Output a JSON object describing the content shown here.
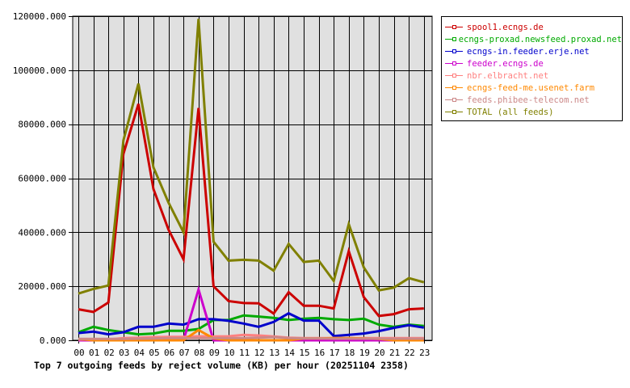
{
  "chart_data": {
    "type": "line",
    "title": "Top 7 outgoing feeds by reject volume (KB) per hour (20251104 2358)",
    "xlabel": "",
    "ylabel": "",
    "ylim": [
      0,
      120000
    ],
    "yticks": [
      "0.000",
      "20000.000",
      "40000.000",
      "60000.000",
      "80000.000",
      "100000.000",
      "120000.000"
    ],
    "ytick_values": [
      0,
      20000,
      40000,
      60000,
      80000,
      100000,
      120000
    ],
    "categories": [
      "00",
      "01",
      "02",
      "03",
      "04",
      "05",
      "06",
      "07",
      "08",
      "09",
      "10",
      "11",
      "12",
      "13",
      "14",
      "15",
      "16",
      "17",
      "18",
      "19",
      "20",
      "21",
      "22",
      "23"
    ],
    "grid": true,
    "legend_position": "right",
    "series": [
      {
        "name": "spool1.ecngs.de",
        "color": "#cc0000",
        "values": [
          11500,
          10500,
          14000,
          69000,
          87500,
          56000,
          41000,
          30000,
          86000,
          20000,
          14500,
          13800,
          13700,
          9900,
          17800,
          12800,
          12800,
          11800,
          33000,
          16000,
          9000,
          9700,
          11500,
          11800
        ]
      },
      {
        "name": "ecngs-proxad.newsfeed.proxad.net",
        "color": "#00aa00",
        "values": [
          3000,
          5000,
          3800,
          3000,
          2200,
          2500,
          3500,
          3500,
          4200,
          7500,
          7500,
          9200,
          8800,
          8300,
          7500,
          8000,
          8300,
          7800,
          7500,
          8000,
          5800,
          5000,
          5800,
          5300
        ]
      },
      {
        "name": "ecngs-in.feeder.erje.net",
        "color": "#0000cc",
        "values": [
          2700,
          3200,
          2200,
          3000,
          5000,
          5000,
          6200,
          5800,
          7800,
          7800,
          7200,
          6200,
          5000,
          6800,
          10000,
          7300,
          7300,
          1600,
          2000,
          2500,
          3400,
          4600,
          5600,
          4700
        ]
      },
      {
        "name": "feeder.ecngs.de",
        "color": "#cc00cc",
        "values": [
          0,
          0,
          0,
          0,
          0,
          0,
          0,
          0,
          18800,
          0,
          0,
          0,
          0,
          0,
          0,
          0,
          0,
          0,
          0,
          0,
          0,
          0,
          0,
          0
        ]
      },
      {
        "name": "nbr.elbracht.net",
        "color": "#ff8080",
        "values": [
          300,
          300,
          300,
          800,
          1000,
          1200,
          1300,
          1300,
          1500,
          1400,
          1500,
          2000,
          1800,
          1400,
          1000,
          800,
          800,
          800,
          800,
          800,
          800,
          800,
          800,
          800
        ]
      },
      {
        "name": "ecngs-feed-me.usenet.farm",
        "color": "#ff8800",
        "values": [
          500,
          0,
          0,
          0,
          0,
          0,
          0,
          0,
          3800,
          700,
          0,
          0,
          0,
          0,
          0,
          700,
          700,
          800,
          800,
          700,
          500,
          0,
          0,
          0
        ]
      },
      {
        "name": "feeds.phibee-telecom.net",
        "color": "#cc8888",
        "values": [
          500,
          500,
          500,
          500,
          600,
          700,
          800,
          800,
          800,
          800,
          800,
          800,
          1000,
          1200,
          800,
          700,
          700,
          600,
          600,
          600,
          600,
          600,
          600,
          600
        ]
      },
      {
        "name": "TOTAL (all feeds)",
        "color": "#808000",
        "values": [
          17300,
          19000,
          20300,
          74000,
          95000,
          64000,
          51000,
          40000,
          119000,
          36500,
          29500,
          29800,
          29500,
          25800,
          35700,
          29000,
          29500,
          22000,
          43000,
          27000,
          18500,
          19500,
          23000,
          21500
        ]
      }
    ]
  },
  "legend": {
    "items": [
      {
        "label": "spool1.ecngs.de",
        "color": "#cc0000"
      },
      {
        "label": "ecngs-proxad.newsfeed.proxad.net",
        "color": "#00aa00"
      },
      {
        "label": "ecngs-in.feeder.erje.net",
        "color": "#0000cc"
      },
      {
        "label": "feeder.ecngs.de",
        "color": "#cc00cc"
      },
      {
        "label": "nbr.elbracht.net",
        "color": "#ff8080"
      },
      {
        "label": "ecngs-feed-me.usenet.farm",
        "color": "#ff8800"
      },
      {
        "label": "feeds.phibee-telecom.net",
        "color": "#cc8888"
      },
      {
        "label": "TOTAL (all feeds)",
        "color": "#808000"
      }
    ]
  },
  "colors": {
    "plot_background": "#e0e0e0",
    "grid": "#000000"
  }
}
